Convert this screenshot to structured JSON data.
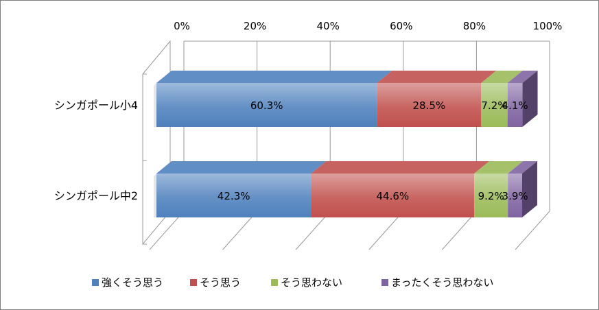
{
  "chart_data": {
    "type": "bar",
    "orientation": "horizontal",
    "stacked": "percent",
    "three_d": true,
    "categories": [
      "シンガポール小4",
      "シンガポール中2"
    ],
    "x_ticks": [
      "0%",
      "20%",
      "40%",
      "60%",
      "80%",
      "100%"
    ],
    "xlim": [
      0,
      100
    ],
    "grid": true,
    "legend_position": "bottom",
    "series": [
      {
        "name": "強くそう思う",
        "values": [
          60.3,
          42.3
        ],
        "labels": [
          "60.3%",
          "42.3%"
        ],
        "color": "#4f81bd"
      },
      {
        "name": "そう思う",
        "values": [
          28.5,
          44.6
        ],
        "labels": [
          "28.5%",
          "44.6%"
        ],
        "color": "#c0504d"
      },
      {
        "name": "そう思わない",
        "values": [
          7.2,
          9.2
        ],
        "labels": [
          "7.2%",
          "9.2%"
        ],
        "color": "#9bbb59"
      },
      {
        "name": "まったくそう思わない",
        "values": [
          4.1,
          3.9
        ],
        "labels": [
          "4.1%",
          "3.9%"
        ],
        "color": "#8064a2"
      }
    ]
  }
}
